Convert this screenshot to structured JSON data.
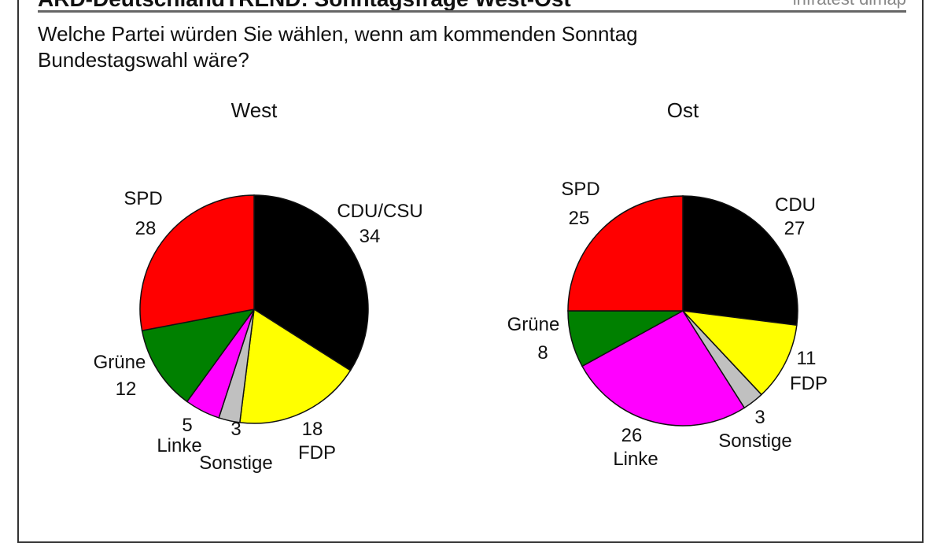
{
  "header": {
    "title": "ARD-DeutschlandTREND: Sonntagsfrage West-Ost",
    "brand": "infratest dimap"
  },
  "question": "Welche Partei würden Sie wählen, wenn am kommenden Sonntag Bundestagswahl wäre?",
  "chart_data": [
    {
      "type": "pie",
      "title": "West",
      "categories": [
        "CDU/CSU",
        "FDP",
        "Sonstige",
        "Linke",
        "Grüne",
        "SPD"
      ],
      "values": [
        34,
        18,
        3,
        5,
        12,
        28
      ],
      "colors": [
        "#000000",
        "#ffff00",
        "#c0c0c0",
        "#ff00ff",
        "#008000",
        "#ff0000"
      ],
      "start": "12 o'clock, clockwise"
    },
    {
      "type": "pie",
      "title": "Ost",
      "categories": [
        "CDU",
        "FDP",
        "Sonstige",
        "Linke",
        "Grüne",
        "SPD"
      ],
      "values": [
        27,
        11,
        3,
        26,
        8,
        25
      ],
      "colors": [
        "#000000",
        "#ffff00",
        "#c0c0c0",
        "#ff00ff",
        "#008000",
        "#ff0000"
      ],
      "start": "12 o'clock, clockwise"
    }
  ]
}
